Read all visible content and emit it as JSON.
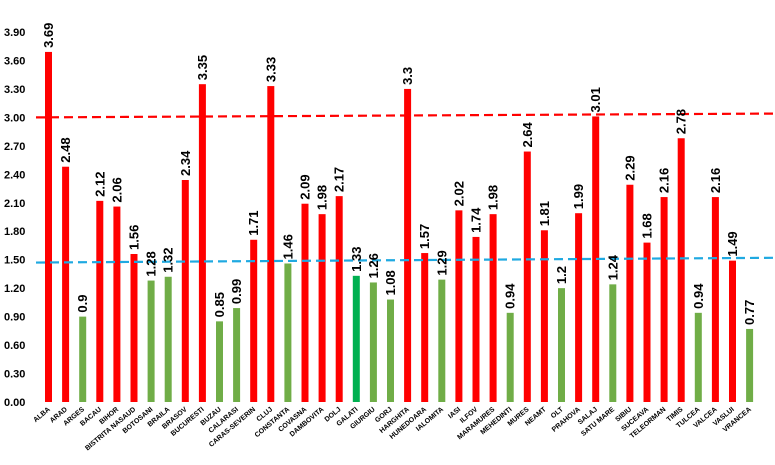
{
  "chart_data": {
    "type": "bar",
    "title": "",
    "xlabel": "",
    "ylabel": "",
    "ylim": [
      0,
      3.9
    ],
    "yticks": [
      "0.00",
      "0.30",
      "0.60",
      "0.90",
      "1.20",
      "1.50",
      "1.80",
      "2.10",
      "2.40",
      "2.70",
      "3.00",
      "3.30",
      "3.60",
      "3.90"
    ],
    "categories": [
      "ALBA",
      "ARAD",
      "ARGES",
      "BACAU",
      "BIHOR",
      "BISTRITA NASAUD",
      "BOTOSANI",
      "BRAILA",
      "BRASOV",
      "BUCURESTI",
      "BUZAU",
      "CALARASI",
      "CARAS-SEVERIN",
      "CLUJ",
      "CONSTANTA",
      "COVASNA",
      "DAMBOVITA",
      "DOLJ",
      "GALATI",
      "GIURGIU",
      "GORJ",
      "HARGHITA",
      "HUNEDOARA",
      "IALOMITA",
      "IASI",
      "ILFOV",
      "MARAMURES",
      "MEHEDINTI",
      "MURES",
      "NEAMT",
      "OLT",
      "PRAHOVA",
      "SALAJ",
      "SATU MARE",
      "SIBIU",
      "SUCEAVA",
      "TELEORMAN",
      "TIMIS",
      "TULCEA",
      "VALCEA",
      "VASLUI",
      "VRANCEA"
    ],
    "values": [
      3.69,
      2.48,
      0.9,
      2.12,
      2.06,
      1.56,
      1.28,
      1.32,
      2.34,
      3.35,
      0.85,
      0.99,
      1.71,
      3.33,
      1.46,
      2.09,
      1.98,
      2.17,
      1.33,
      1.26,
      1.08,
      3.3,
      1.57,
      1.29,
      2.02,
      1.74,
      1.98,
      0.94,
      2.64,
      1.81,
      1.2,
      1.99,
      3.01,
      1.24,
      2.29,
      1.68,
      2.16,
      2.78,
      0.94,
      2.16,
      1.49,
      0.77
    ],
    "value_labels": [
      "3.69",
      "2.48",
      "0.9",
      "2.12",
      "2.06",
      "1.56",
      "1.28",
      "1.32",
      "2.34",
      "3.35",
      "0.85",
      "0.99",
      "1.71",
      "3.33",
      "1.46",
      "2.09",
      "1.98",
      "2.17",
      "1.33",
      "1.26",
      "1.08",
      "3.3",
      "1.57",
      "1.29",
      "2.02",
      "1.74",
      "1.98",
      "0.94",
      "2.64",
      "1.81",
      "1.2",
      "1.99",
      "3.01",
      "1.24",
      "2.29",
      "1.68",
      "2.16",
      "2.78",
      "0.94",
      "2.16",
      "1.49",
      "0.77"
    ],
    "bar_colors": {
      "above": "#ff0000",
      "below": "#70ad47",
      "highlight": "#00b050"
    },
    "highlight_category": "GALATI",
    "reference_lines": [
      {
        "name": "upper-threshold",
        "value_start": 3.0,
        "value_end": 3.04,
        "color": "#ff0000",
        "style": "dashed"
      },
      {
        "name": "lower-threshold",
        "value_start": 1.47,
        "value_end": 1.52,
        "color": "#1fa9e1",
        "style": "dashed"
      }
    ]
  }
}
